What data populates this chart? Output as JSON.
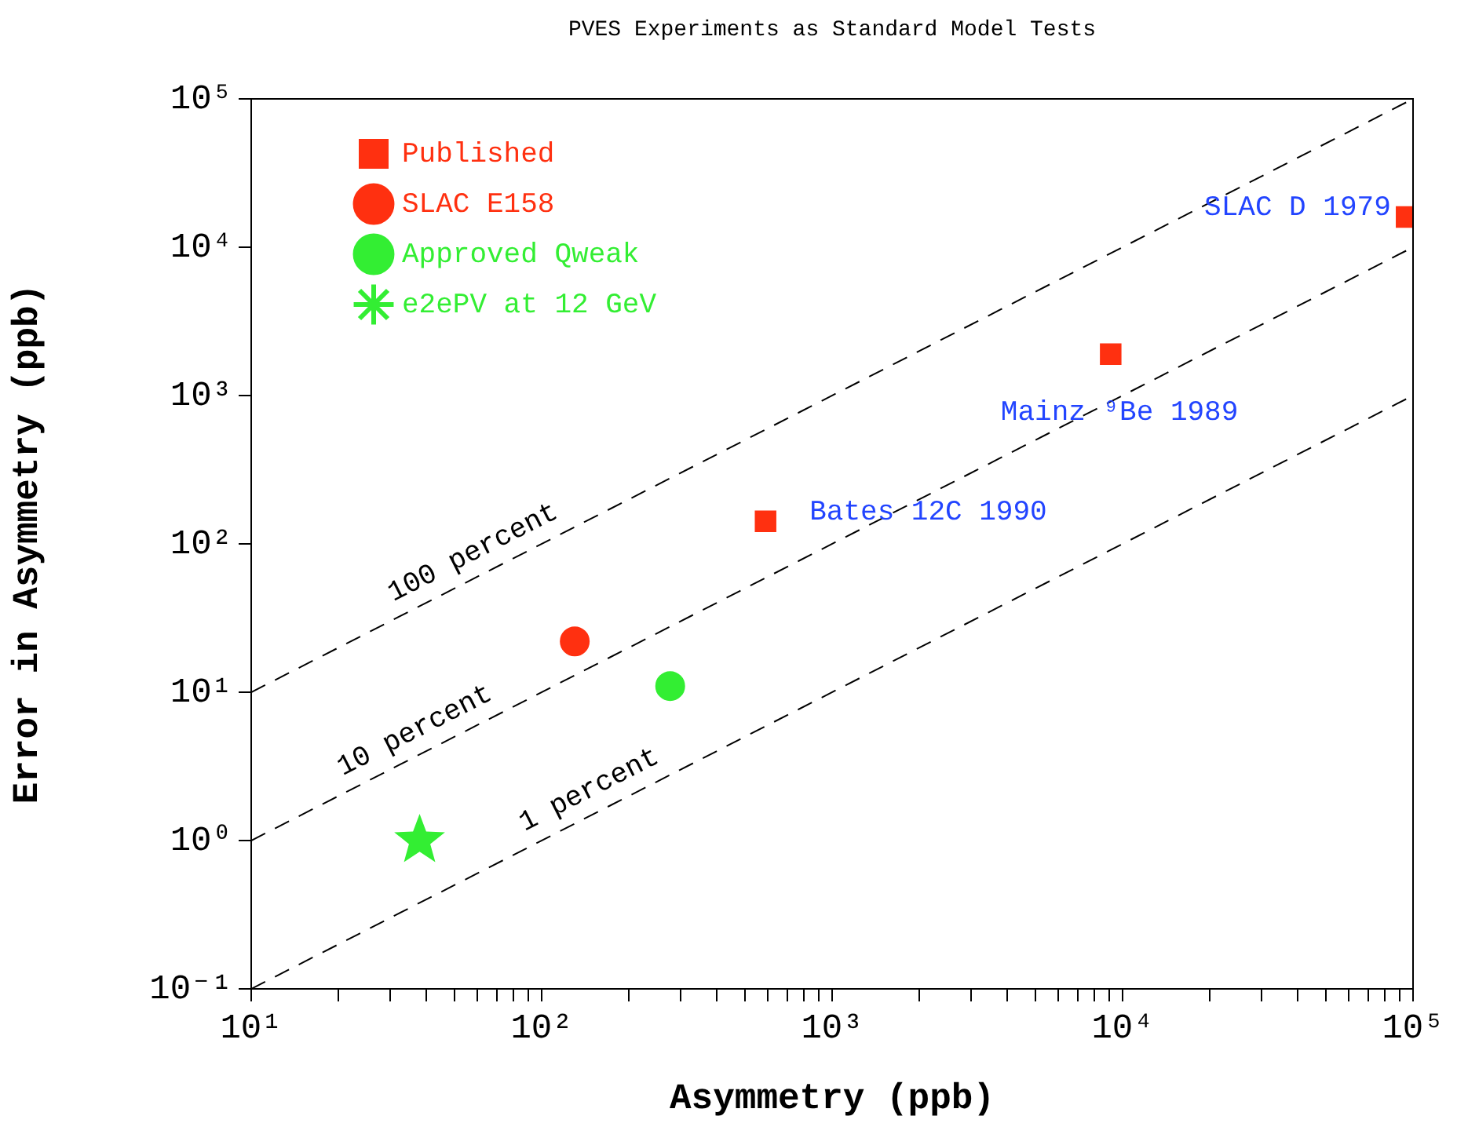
{
  "chart_data": {
    "type": "scatter",
    "title": "PVES Experiments as Standard Model Tests",
    "xlabel": "Asymmetry (ppb)",
    "ylabel": "Error in Asymmetry (ppb)",
    "log": "xy",
    "grid": false,
    "legend": "top left",
    "xlim": [
      10,
      100000
    ],
    "ylim": [
      0.1,
      100000
    ],
    "xticks": [
      {
        "value": 10,
        "label": "10¹"
      },
      {
        "value": 20,
        "label": null
      },
      {
        "value": 30,
        "label": null
      },
      {
        "value": 40,
        "label": null
      },
      {
        "value": 50,
        "label": null
      },
      {
        "value": 60,
        "label": null
      },
      {
        "value": 70,
        "label": null
      },
      {
        "value": 80,
        "label": null
      },
      {
        "value": 90,
        "label": null
      },
      {
        "value": 100,
        "label": "10²"
      },
      {
        "value": 200,
        "label": null
      },
      {
        "value": 300,
        "label": null
      },
      {
        "value": 400,
        "label": null
      },
      {
        "value": 500,
        "label": null
      },
      {
        "value": 600,
        "label": null
      },
      {
        "value": 700,
        "label": null
      },
      {
        "value": 800,
        "label": null
      },
      {
        "value": 900,
        "label": null
      },
      {
        "value": 1000,
        "label": "10³"
      },
      {
        "value": 2000,
        "label": null
      },
      {
        "value": 3000,
        "label": null
      },
      {
        "value": 4000,
        "label": null
      },
      {
        "value": 5000,
        "label": null
      },
      {
        "value": 6000,
        "label": null
      },
      {
        "value": 7000,
        "label": null
      },
      {
        "value": 8000,
        "label": null
      },
      {
        "value": 9000,
        "label": null
      },
      {
        "value": 10000,
        "label": "10⁴"
      },
      {
        "value": 20000,
        "label": null
      },
      {
        "value": 30000,
        "label": null
      },
      {
        "value": 40000,
        "label": null
      },
      {
        "value": 50000,
        "label": null
      },
      {
        "value": 60000,
        "label": null
      },
      {
        "value": 70000,
        "label": null
      },
      {
        "value": 80000,
        "label": null
      },
      {
        "value": 90000,
        "label": null
      },
      {
        "value": 100000,
        "label": "10⁵"
      }
    ],
    "yticks": [
      {
        "value": 0.1,
        "label": "10⁻¹"
      },
      {
        "value": 1,
        "label": "10⁰"
      },
      {
        "value": 10,
        "label": "10¹"
      },
      {
        "value": 100,
        "label": "10²"
      },
      {
        "value": 1000,
        "label": "10³"
      },
      {
        "value": 10000,
        "label": "10⁴"
      },
      {
        "value": 100000,
        "label": "10⁵"
      }
    ],
    "series": [
      {
        "name": "Published",
        "color": "#ff3010",
        "marker": "square",
        "x": [
          95000,
          9100,
          590
        ],
        "values": [
          16000,
          1900,
          142
        ]
      },
      {
        "name": "SLAC E158",
        "color": "#ff3010",
        "marker": "circle",
        "x": [
          130
        ],
        "values": [
          22
        ]
      },
      {
        "name": "Approved Qweak",
        "color": "#33ee33",
        "marker": "circle",
        "x": [
          277
        ],
        "values": [
          11
        ]
      },
      {
        "name": "e2ePV at 12 GeV",
        "color": "#33ee33",
        "marker": "star",
        "x": [
          38
        ],
        "values": [
          1
        ]
      },
      {
        "name": "100 percent",
        "type": "line",
        "color": "#000000",
        "line_style": "dashed",
        "marker": "none",
        "x": [
          10,
          100000
        ],
        "values": [
          10,
          100000
        ]
      },
      {
        "name": "10 percent",
        "type": "line",
        "color": "#000000",
        "line_style": "dashed",
        "marker": "none",
        "x": [
          10,
          100000
        ],
        "values": [
          1,
          10000
        ]
      },
      {
        "name": "1 percent",
        "type": "line",
        "color": "#000000",
        "line_style": "dashed",
        "marker": "none",
        "x": [
          10,
          100000
        ],
        "values": [
          0.1,
          1000
        ]
      }
    ],
    "annotations": [
      {
        "text": "SLAC D 1979",
        "x": 95000,
        "y": 16000
      },
      {
        "text": "Mainz ⁹Be 1989",
        "x": 9100,
        "y": 1900
      },
      {
        "text": "Bates 12C 1990",
        "x": 590,
        "y": 142
      }
    ]
  }
}
